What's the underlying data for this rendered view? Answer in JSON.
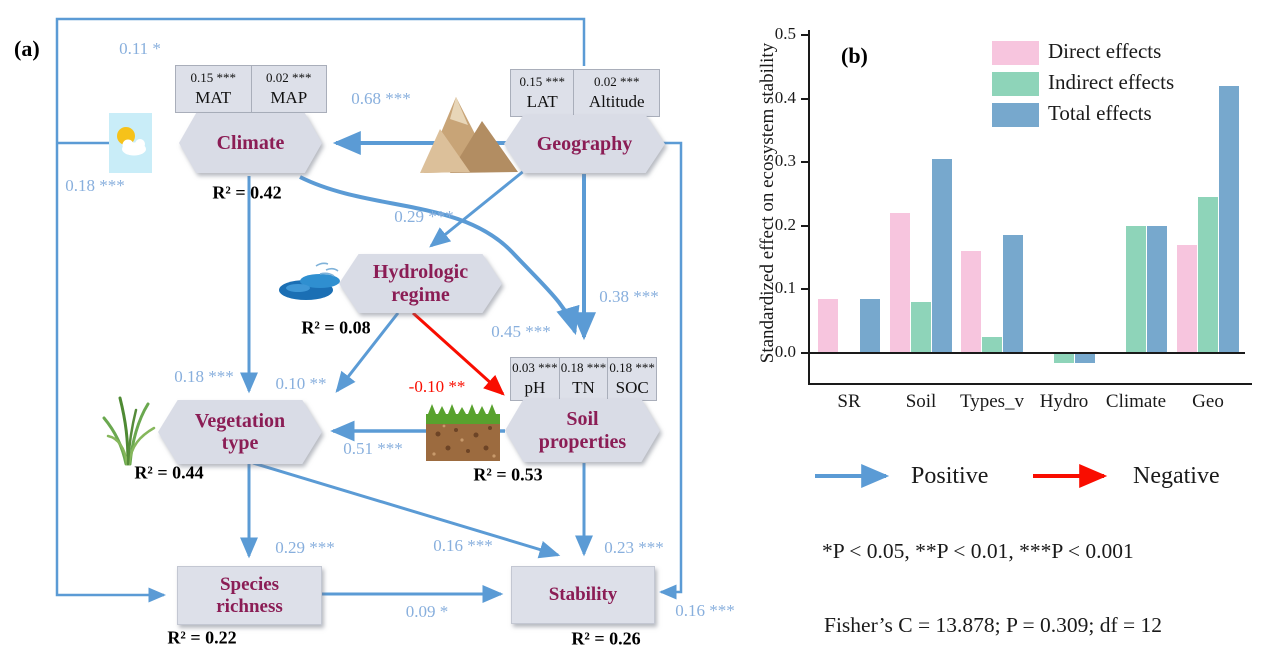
{
  "panels": {
    "a_label": "(a)",
    "b_label": "(b)"
  },
  "sem": {
    "nodes": {
      "climate": {
        "label": "Climate",
        "r2": "R² = 0.42",
        "indicators": [
          {
            "loading": "0.15 ***",
            "name": "MAT"
          },
          {
            "loading": "0.02 ***",
            "name": "MAP"
          }
        ]
      },
      "geography": {
        "label": "Geography",
        "indicators": [
          {
            "loading": "0.15 ***",
            "name": "LAT"
          },
          {
            "loading": "0.02 ***",
            "name": "Altitude"
          }
        ]
      },
      "hydrologic": {
        "label_line1": "Hydrologic",
        "label_line2": "regime",
        "r2": "R² = 0.08"
      },
      "vegetation": {
        "label_line1": "Vegetation",
        "label_line2": "type",
        "r2": "R² = 0.44"
      },
      "soil": {
        "label_line1": "Soil",
        "label_line2": "properties",
        "r2": "R² = 0.53",
        "indicators": [
          {
            "loading": "0.03 ***",
            "name": "pH"
          },
          {
            "loading": "0.18 ***",
            "name": "TN"
          },
          {
            "loading": "0.18 ***",
            "name": "SOC"
          }
        ]
      },
      "species": {
        "label_line1": "Species",
        "label_line2": "richness",
        "r2": "R² = 0.22"
      },
      "stability": {
        "label": "Stability",
        "r2": "R² = 0.26"
      }
    },
    "coefficients": {
      "geo_to_climate": "0.68 ***",
      "geo_to_species": "0.11 *",
      "climate_to_species": "0.18 ***",
      "geo_to_hydro": "0.29 ***",
      "geo_to_soil": "0.38 ***",
      "climate_to_soil": "0.45 ***",
      "climate_to_vegetation": "0.18 ***",
      "hydro_to_vegetation": "0.10 **",
      "hydro_to_soil": "-0.10 **",
      "soil_to_vegetation": "0.51 ***",
      "soil_to_stability": "0.23 ***",
      "vegetation_to_species": "0.29 ***",
      "vegetation_to_stability": "0.16 ***",
      "species_to_stability": "0.09 *",
      "geo_to_stability": "0.16 ***"
    },
    "arrow_colors": {
      "positive": "#5b9bd5",
      "negative": "#f90d00"
    }
  },
  "chart_data": {
    "type": "bar",
    "title": "",
    "xlabel": "",
    "ylabel": "Standardized effect on ecosystem stability",
    "categories": [
      "SR",
      "Soil",
      "Types_v",
      "Hydro",
      "Climate",
      "Geo"
    ],
    "series": [
      {
        "name": "Direct effects",
        "color": "#f7c5de",
        "values": [
          0.085,
          0.22,
          0.16,
          null,
          null,
          0.17
        ]
      },
      {
        "name": "Indirect effects",
        "color": "#8ed4b9",
        "values": [
          null,
          0.08,
          0.025,
          -0.015,
          0.2,
          0.245
        ]
      },
      {
        "name": "Total effects",
        "color": "#77a8cd",
        "values": [
          0.085,
          0.305,
          0.185,
          -0.015,
          0.2,
          0.42
        ]
      }
    ],
    "yticks": [
      0.0,
      0.1,
      0.2,
      0.3,
      0.4,
      0.5
    ],
    "ylim": [
      -0.05,
      0.5
    ],
    "grid": false,
    "legend_position": "top-right"
  },
  "arrow_legend": {
    "positive": "Positive",
    "negative": "Negative"
  },
  "notes": {
    "significance": "*P < 0.05, **P < 0.01, ***P < 0.001",
    "fit": "Fisher’s C = 13.878; P = 0.309; df = 12"
  }
}
